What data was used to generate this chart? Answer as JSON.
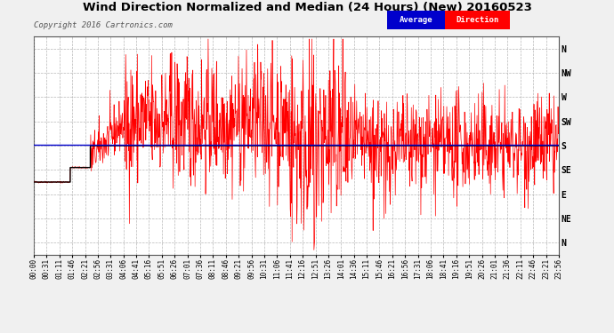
{
  "title": "Wind Direction Normalized and Median (24 Hours) (New) 20160523",
  "copyright": "Copyright 2016 Cartronics.com",
  "background_color": "#f0f0f0",
  "plot_bg_color": "#ffffff",
  "ytick_labels": [
    "N",
    "NW",
    "W",
    "SW",
    "S",
    "SE",
    "E",
    "NE",
    "N"
  ],
  "ytick_values": [
    4,
    3,
    2,
    1,
    0,
    -1,
    -2,
    -3,
    -4
  ],
  "median_line_y": 0.05,
  "median_line_color": "#0000cc",
  "red_line_color": "#ff0000",
  "black_line_color": "#000000",
  "legend_avg_bg": "#0000cc",
  "legend_dir_bg": "#ff0000",
  "xtick_labels": [
    "00:00",
    "00:31",
    "01:11",
    "01:46",
    "02:21",
    "02:56",
    "03:31",
    "04:06",
    "04:41",
    "05:16",
    "05:51",
    "06:26",
    "07:01",
    "07:36",
    "08:11",
    "08:46",
    "09:21",
    "09:56",
    "10:31",
    "11:06",
    "11:41",
    "12:16",
    "12:51",
    "13:26",
    "14:01",
    "14:36",
    "15:11",
    "15:46",
    "16:21",
    "16:56",
    "17:31",
    "18:06",
    "18:41",
    "19:16",
    "19:51",
    "20:26",
    "21:01",
    "21:36",
    "22:11",
    "22:46",
    "23:21",
    "23:56"
  ],
  "ylim": [
    -4.5,
    4.5
  ],
  "title_fontsize": 9.5,
  "copyright_fontsize": 6.5,
  "ytick_fontsize": 7,
  "xtick_fontsize": 5.5
}
